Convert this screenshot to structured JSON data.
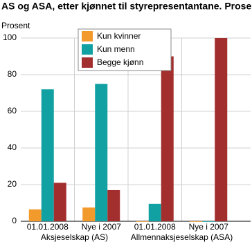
{
  "chart_data": {
    "type": "bar",
    "title": "AS og ASA, etter kjønnet til styrepresentantane. Prosent",
    "y_label": "Prosent",
    "categories": [
      "01.01.2008",
      "Nye i 2007",
      "01.01.2008",
      "Nye i 2007"
    ],
    "groups": [
      "Aksjeselskap (AS)",
      "Allmennaksjeselskap (ASA)"
    ],
    "series": [
      {
        "name": "Kun kvinner",
        "color": "#f39a2c",
        "values": [
          6.5,
          7.5,
          0,
          0
        ]
      },
      {
        "name": "Kun menn",
        "color": "#12a1a3",
        "values": [
          72,
          75,
          9.5,
          0
        ]
      },
      {
        "name": "Begge kjønn",
        "color": "#a32e2e",
        "values": [
          21,
          17,
          90,
          100
        ]
      }
    ],
    "ylim": [
      0,
      100
    ],
    "yticks": [
      0,
      20,
      40,
      60,
      80,
      100
    ],
    "grid": true,
    "legend": "top"
  }
}
